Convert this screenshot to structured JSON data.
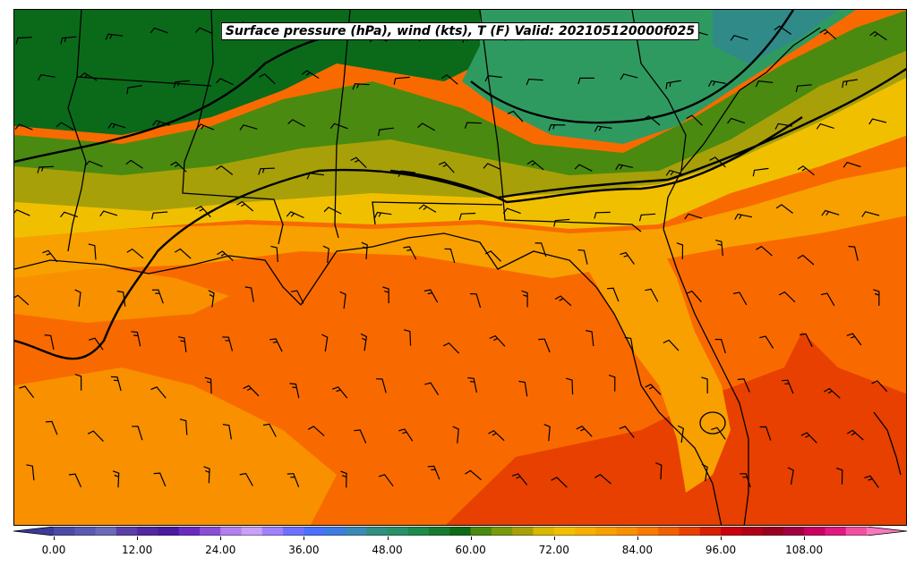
{
  "title": "Surface pressure (hPa), wind (kts), T (F) Valid: 202105120000f025",
  "colorbar": {
    "min": 0,
    "max": 117,
    "step": 3,
    "tick_labels": [
      "0.00",
      "12.00",
      "24.00",
      "36.00",
      "48.00",
      "60.00",
      "72.00",
      "84.00",
      "96.00",
      "108.00"
    ],
    "tick_values": [
      0,
      12,
      24,
      36,
      48,
      60,
      72,
      84,
      96,
      108
    ],
    "colors": [
      "#3b3b9a",
      "#4b4ba6",
      "#5a5ab0",
      "#6a6ab8",
      "#5c3fa6",
      "#5228a0",
      "#4a1aa0",
      "#6a2cc0",
      "#8a4ed8",
      "#b080f0",
      "#c8a0f8",
      "#a080ff",
      "#7070ff",
      "#4a70ff",
      "#3d7de0",
      "#3a8ab8",
      "#2f8f80",
      "#27906a",
      "#1e8a4c",
      "#187a30",
      "#0f6a18",
      "#4a8a10",
      "#7a9a0a",
      "#a8a008",
      "#d8b800",
      "#f0c000",
      "#f8b000",
      "#f8a000",
      "#f89000",
      "#f87a00",
      "#f06000",
      "#e84000",
      "#d82000",
      "#c80010",
      "#b00018",
      "#980020",
      "#a00040",
      "#c80060",
      "#e01880",
      "#f050a0",
      "#f878c0"
    ]
  },
  "map_colors": {
    "dark_green": "#0a6a1a",
    "teal_green": "#2f9a60",
    "teal_blue": "#2f8a88",
    "olive": "#4a8a10",
    "olive_yellow": "#a8a008",
    "yellow": "#f0c000",
    "light_orange": "#f8a000",
    "orange": "#f89000",
    "dark_orange": "#f86a00",
    "red_orange": "#e84000"
  }
}
